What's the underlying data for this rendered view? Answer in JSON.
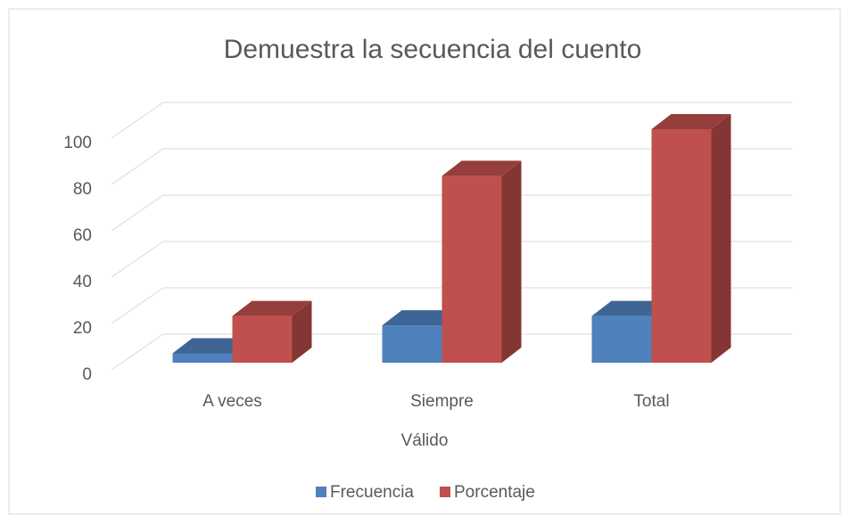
{
  "chart_data": {
    "type": "bar3d",
    "title": "Demuestra la secuencia del cuento",
    "categories": [
      "A veces",
      "Siempre",
      "Total"
    ],
    "xlabel": "Válido",
    "series": [
      {
        "name": "Frecuencia",
        "color": "#4f81bd",
        "values": [
          4,
          16,
          20
        ]
      },
      {
        "name": "Porcentaje",
        "color": "#c0504d",
        "values": [
          20,
          80,
          100
        ]
      }
    ],
    "ylim": [
      0,
      100
    ],
    "yticks": [
      0,
      20,
      40,
      60,
      80,
      100
    ],
    "grid": true,
    "legend": "bottom"
  }
}
